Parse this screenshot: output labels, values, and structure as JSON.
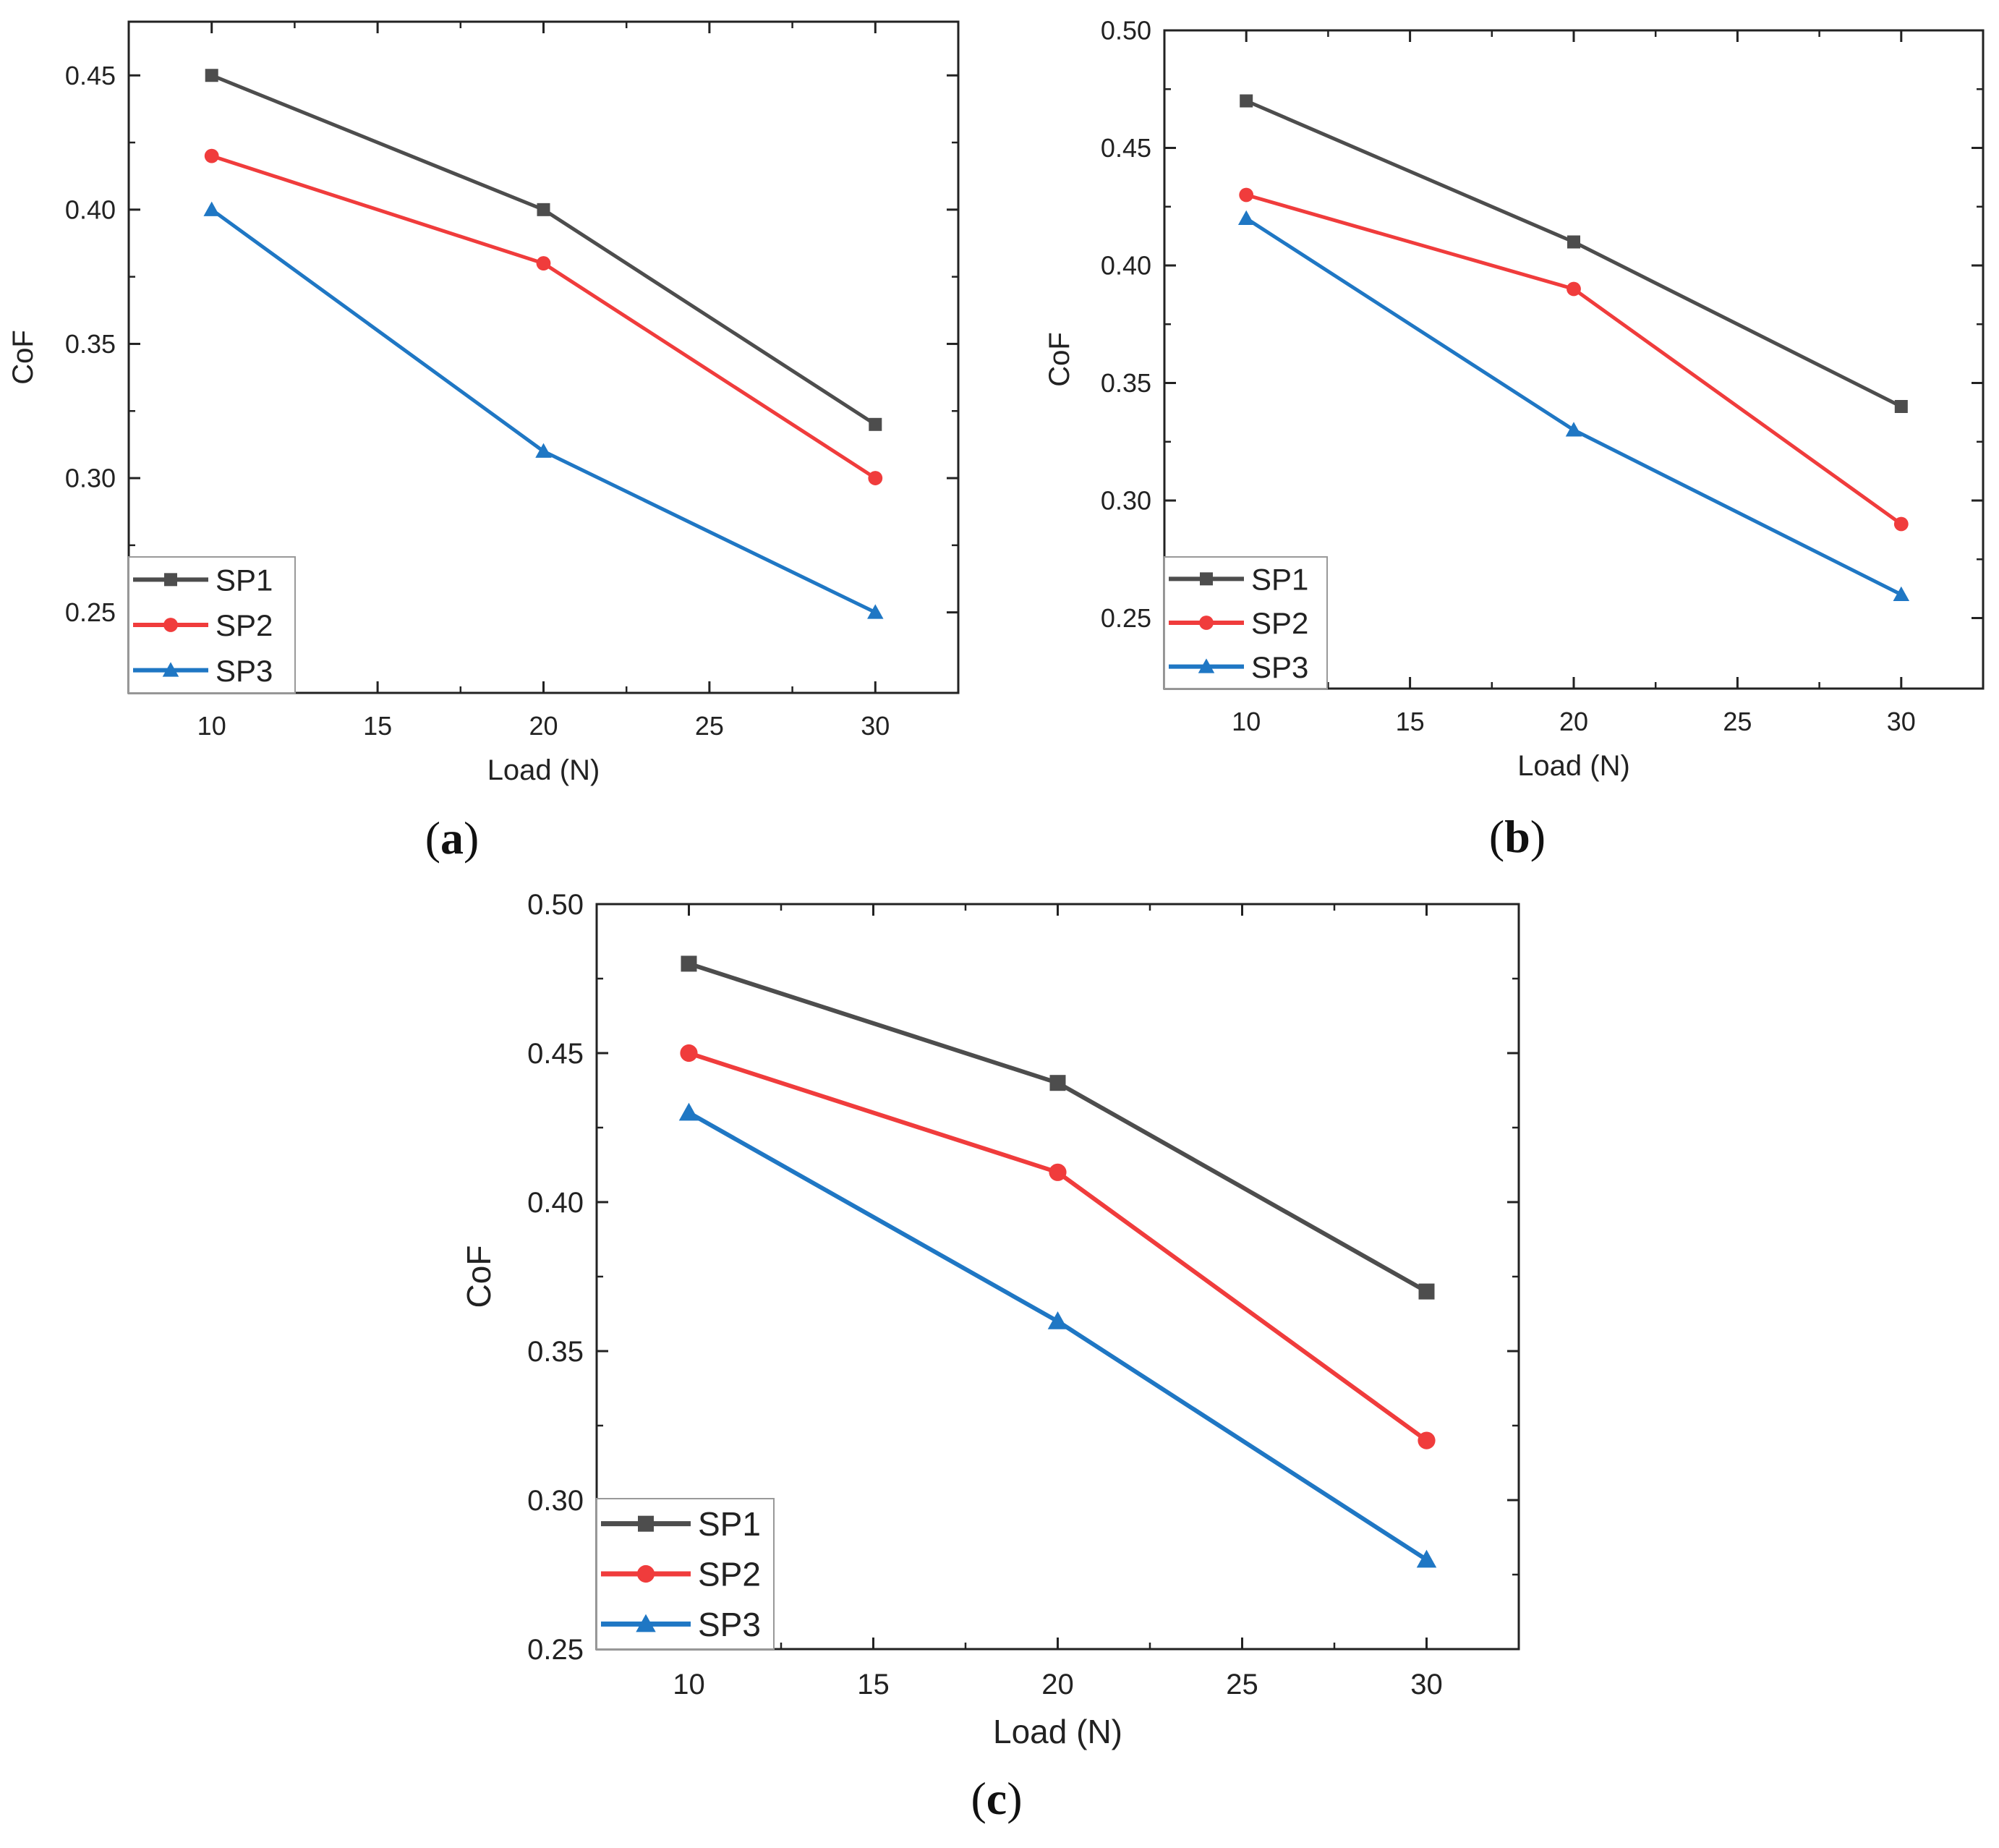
{
  "chart_data": [
    {
      "type": "line",
      "panel_label": "(a)",
      "panel_letter": "a",
      "xlabel": "Load (N)",
      "ylabel": "CoF",
      "xlim": [
        7.5,
        32.5
      ],
      "ylim": [
        0.22,
        0.47
      ],
      "x_ticks": [
        10,
        15,
        20,
        25,
        30
      ],
      "y_ticks": [
        0.25,
        0.3,
        0.35,
        0.4,
        0.45
      ],
      "x": [
        10,
        20,
        30
      ],
      "series": [
        {
          "name": "SP1",
          "values": [
            0.45,
            0.4,
            0.32
          ],
          "color": "#4d4d4d",
          "marker": "square"
        },
        {
          "name": "SP2",
          "values": [
            0.42,
            0.38,
            0.3
          ],
          "color": "#f03c3c",
          "marker": "circle"
        },
        {
          "name": "SP3",
          "values": [
            0.4,
            0.31,
            0.25
          ],
          "color": "#1f77c4",
          "marker": "triangle"
        }
      ],
      "legend_position": "bottom-left"
    },
    {
      "type": "line",
      "panel_label": "(b)",
      "panel_letter": "b",
      "xlabel": "Load (N)",
      "ylabel": "CoF",
      "xlim": [
        7.5,
        32.5
      ],
      "ylim": [
        0.22,
        0.5
      ],
      "x_ticks": [
        10,
        15,
        20,
        25,
        30
      ],
      "y_ticks": [
        0.25,
        0.3,
        0.35,
        0.4,
        0.45,
        0.5
      ],
      "x": [
        10,
        20,
        30
      ],
      "series": [
        {
          "name": "SP1",
          "values": [
            0.47,
            0.41,
            0.34
          ],
          "color": "#4d4d4d",
          "marker": "square"
        },
        {
          "name": "SP2",
          "values": [
            0.43,
            0.39,
            0.29
          ],
          "color": "#f03c3c",
          "marker": "circle"
        },
        {
          "name": "SP3",
          "values": [
            0.42,
            0.33,
            0.26
          ],
          "color": "#1f77c4",
          "marker": "triangle"
        }
      ],
      "legend_position": "bottom-left"
    },
    {
      "type": "line",
      "panel_label": "(c)",
      "panel_letter": "c",
      "xlabel": "Load (N)",
      "ylabel": "CoF",
      "xlim": [
        7.5,
        32.5
      ],
      "ylim": [
        0.25,
        0.5
      ],
      "x_ticks": [
        10,
        15,
        20,
        25,
        30
      ],
      "y_ticks": [
        0.25,
        0.3,
        0.35,
        0.4,
        0.45,
        0.5
      ],
      "x": [
        10,
        20,
        30
      ],
      "series": [
        {
          "name": "SP1",
          "values": [
            0.48,
            0.44,
            0.37
          ],
          "color": "#4d4d4d",
          "marker": "square"
        },
        {
          "name": "SP2",
          "values": [
            0.45,
            0.41,
            0.32
          ],
          "color": "#f03c3c",
          "marker": "circle"
        },
        {
          "name": "SP3",
          "values": [
            0.43,
            0.36,
            0.28
          ],
          "color": "#1f77c4",
          "marker": "triangle"
        }
      ],
      "legend_position": "bottom-left"
    }
  ]
}
